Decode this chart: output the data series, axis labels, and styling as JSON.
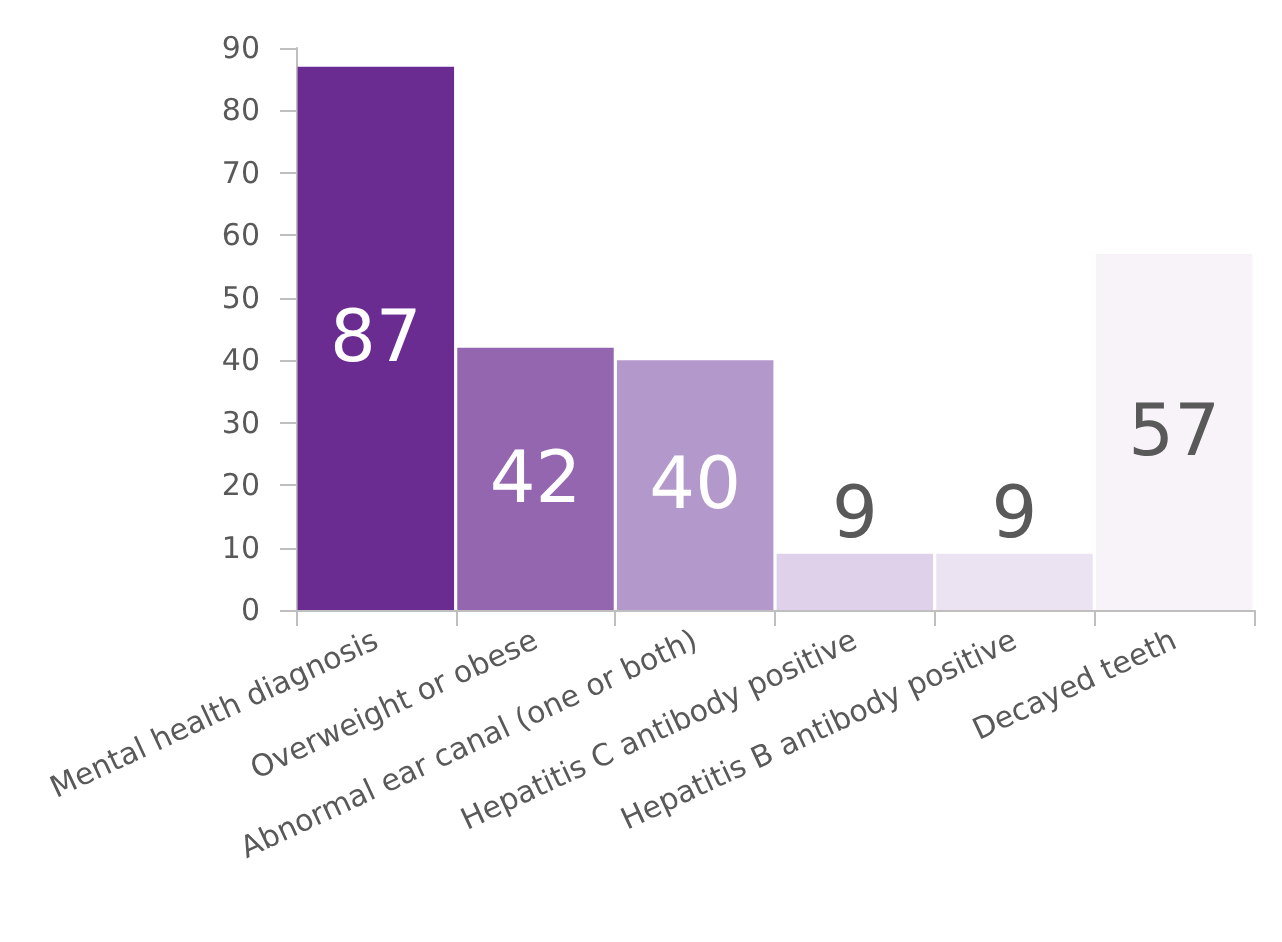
{
  "chart_data": {
    "type": "bar",
    "categories": [
      "Mental health diagnosis",
      "Overweight or obese",
      "Abnormal ear canal (one or both)",
      "Hepatitis C antibody positive",
      "Hepatitis B antibody positive",
      "Decayed teeth"
    ],
    "values": [
      87,
      42,
      40,
      9,
      9,
      57
    ],
    "colors": [
      "#6a2c91",
      "#9566b0",
      "#b399cb",
      "#e0d1ea",
      "#ece3f2",
      "#f8f2f9"
    ],
    "ylim": [
      0,
      90
    ],
    "yticks": [
      0,
      10,
      20,
      30,
      40,
      50,
      60,
      70,
      80,
      90
    ],
    "grid": false,
    "data_labels": true
  }
}
